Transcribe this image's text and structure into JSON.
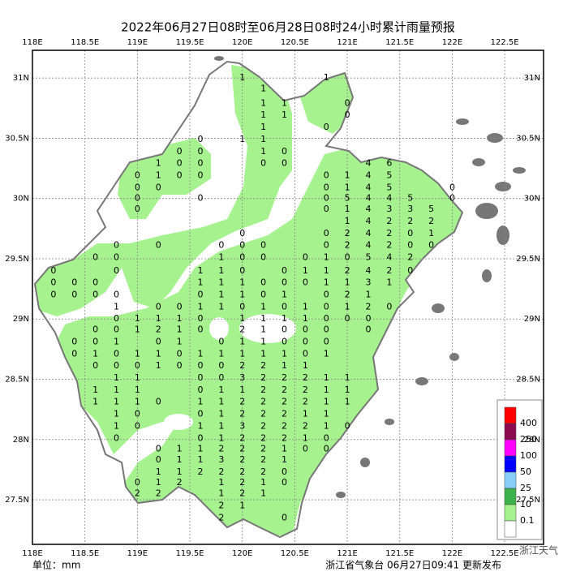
{
  "title": "2022年06月27日08时至06月28日08时24小时累计雨量预报",
  "xlim": [
    118,
    122.87
  ],
  "ylim": [
    27.13,
    31.23
  ],
  "xticks": [
    {
      "value": 118,
      "label": "118E"
    },
    {
      "value": 118.5,
      "label": "118.5E"
    },
    {
      "value": 119,
      "label": "119E"
    },
    {
      "value": 119.5,
      "label": "119.5E"
    },
    {
      "value": 120,
      "label": "120E"
    },
    {
      "value": 120.5,
      "label": "120.5E"
    },
    {
      "value": 121,
      "label": "121E"
    },
    {
      "value": 121.5,
      "label": "121.5E"
    },
    {
      "value": 122,
      "label": "122E"
    },
    {
      "value": 122.5,
      "label": "122.5E"
    }
  ],
  "yticks": [
    {
      "value": 31,
      "label": "31N"
    },
    {
      "value": 30.5,
      "label": "30.5N"
    },
    {
      "value": 30,
      "label": "30N"
    },
    {
      "value": 29.5,
      "label": "29.5N"
    },
    {
      "value": 29,
      "label": "29N"
    },
    {
      "value": 28.5,
      "label": "28.5N"
    },
    {
      "value": 28,
      "label": "28N"
    },
    {
      "value": 27.5,
      "label": "27.5N"
    }
  ],
  "stations": [
    [
      120.0,
      31.0,
      1
    ],
    [
      120.8,
      31.0,
      1
    ],
    [
      120.2,
      30.91,
      1
    ],
    [
      120.2,
      30.79,
      1
    ],
    [
      120.4,
      30.79,
      1
    ],
    [
      121.0,
      30.79,
      0
    ],
    [
      120.2,
      30.69,
      1
    ],
    [
      120.4,
      30.69,
      1
    ],
    [
      121.0,
      30.69,
      0
    ],
    [
      120.2,
      30.59,
      1
    ],
    [
      120.8,
      30.59,
      0
    ],
    [
      119.6,
      30.49,
      0
    ],
    [
      120.0,
      30.49,
      1
    ],
    [
      120.2,
      30.49,
      1
    ],
    [
      119.4,
      30.39,
      0
    ],
    [
      119.6,
      30.39,
      0
    ],
    [
      120.2,
      30.39,
      1
    ],
    [
      120.4,
      30.39,
      0
    ],
    [
      119.2,
      30.29,
      1
    ],
    [
      119.4,
      30.29,
      0
    ],
    [
      119.6,
      30.29,
      0
    ],
    [
      120.2,
      30.29,
      0
    ],
    [
      120.4,
      30.29,
      0
    ],
    [
      121.2,
      30.29,
      4
    ],
    [
      121.4,
      30.29,
      6
    ],
    [
      119.0,
      30.19,
      0
    ],
    [
      119.2,
      30.19,
      1
    ],
    [
      119.4,
      30.19,
      0
    ],
    [
      119.6,
      30.19,
      0
    ],
    [
      120.8,
      30.19,
      0
    ],
    [
      121.0,
      30.19,
      1
    ],
    [
      121.2,
      30.19,
      4
    ],
    [
      121.4,
      30.19,
      5
    ],
    [
      119.0,
      30.09,
      0
    ],
    [
      119.2,
      30.09,
      0
    ],
    [
      120.8,
      30.09,
      0
    ],
    [
      121.0,
      30.09,
      1
    ],
    [
      121.2,
      30.09,
      4
    ],
    [
      121.4,
      30.09,
      5
    ],
    [
      122.0,
      30.09,
      0
    ],
    [
      119.0,
      30.0,
      0
    ],
    [
      119.6,
      30.0,
      0
    ],
    [
      120.8,
      30.0,
      0
    ],
    [
      121.0,
      30.0,
      5
    ],
    [
      121.2,
      30.0,
      4
    ],
    [
      121.4,
      30.0,
      4
    ],
    [
      121.6,
      30.0,
      5
    ],
    [
      122.0,
      30.0,
      0
    ],
    [
      119.0,
      29.91,
      0
    ],
    [
      120.8,
      29.91,
      0
    ],
    [
      121.0,
      29.91,
      1
    ],
    [
      121.2,
      29.91,
      4
    ],
    [
      121.4,
      29.91,
      3
    ],
    [
      121.6,
      29.91,
      3
    ],
    [
      121.8,
      29.91,
      5
    ],
    [
      121.0,
      29.81,
      1
    ],
    [
      121.2,
      29.81,
      4
    ],
    [
      121.4,
      29.81,
      2
    ],
    [
      121.6,
      29.81,
      2
    ],
    [
      121.8,
      29.81,
      2
    ],
    [
      120.0,
      29.71,
      0
    ],
    [
      120.8,
      29.71,
      0
    ],
    [
      121.0,
      29.71,
      2
    ],
    [
      121.2,
      29.71,
      4
    ],
    [
      121.4,
      29.71,
      2
    ],
    [
      121.6,
      29.71,
      0
    ],
    [
      121.8,
      29.71,
      1
    ],
    [
      118.8,
      29.61,
      0
    ],
    [
      119.2,
      29.61,
      0
    ],
    [
      119.8,
      29.61,
      0
    ],
    [
      120.0,
      29.61,
      0
    ],
    [
      120.2,
      29.61,
      0
    ],
    [
      120.8,
      29.61,
      0
    ],
    [
      121.0,
      29.61,
      2
    ],
    [
      121.2,
      29.61,
      4
    ],
    [
      121.4,
      29.61,
      2
    ],
    [
      121.6,
      29.61,
      0
    ],
    [
      121.8,
      29.61,
      0
    ],
    [
      118.6,
      29.51,
      0
    ],
    [
      118.8,
      29.51,
      0
    ],
    [
      119.8,
      29.51,
      1
    ],
    [
      120.0,
      29.51,
      0
    ],
    [
      120.2,
      29.51,
      0
    ],
    [
      120.6,
      29.51,
      0
    ],
    [
      120.8,
      29.51,
      1
    ],
    [
      121.0,
      29.51,
      0
    ],
    [
      121.2,
      29.51,
      5
    ],
    [
      121.4,
      29.51,
      4
    ],
    [
      121.6,
      29.51,
      2
    ],
    [
      118.2,
      29.4,
      0
    ],
    [
      118.8,
      29.4,
      0
    ],
    [
      119.6,
      29.4,
      1
    ],
    [
      119.8,
      29.4,
      1
    ],
    [
      120.0,
      29.4,
      0
    ],
    [
      120.4,
      29.4,
      0
    ],
    [
      120.6,
      29.4,
      1
    ],
    [
      120.8,
      29.4,
      1
    ],
    [
      121.0,
      29.4,
      2
    ],
    [
      121.2,
      29.4,
      4
    ],
    [
      121.4,
      29.4,
      2
    ],
    [
      121.6,
      29.4,
      0
    ],
    [
      118.2,
      29.3,
      0
    ],
    [
      118.4,
      29.3,
      0
    ],
    [
      118.6,
      29.3,
      0
    ],
    [
      119.6,
      29.3,
      1
    ],
    [
      119.8,
      29.3,
      1
    ],
    [
      120.0,
      29.3,
      1
    ],
    [
      120.2,
      29.3,
      0
    ],
    [
      120.4,
      29.3,
      0
    ],
    [
      120.6,
      29.3,
      0
    ],
    [
      120.8,
      29.3,
      1
    ],
    [
      121.0,
      29.3,
      1
    ],
    [
      121.2,
      29.3,
      3
    ],
    [
      121.4,
      29.3,
      1
    ],
    [
      118.2,
      29.2,
      0
    ],
    [
      118.4,
      29.2,
      0
    ],
    [
      118.6,
      29.2,
      0
    ],
    [
      118.8,
      29.2,
      0
    ],
    [
      119.6,
      29.2,
      0
    ],
    [
      119.8,
      29.2,
      1
    ],
    [
      120.0,
      29.2,
      1
    ],
    [
      120.2,
      29.2,
      0
    ],
    [
      120.4,
      29.2,
      1
    ],
    [
      120.8,
      29.2,
      0
    ],
    [
      121.0,
      29.2,
      2
    ],
    [
      121.2,
      29.2,
      1
    ],
    [
      118.8,
      29.1,
      1
    ],
    [
      119.2,
      29.1,
      0
    ],
    [
      119.4,
      29.1,
      0
    ],
    [
      119.6,
      29.1,
      1
    ],
    [
      119.8,
      29.1,
      1
    ],
    [
      120.0,
      29.1,
      0
    ],
    [
      120.2,
      29.1,
      1
    ],
    [
      120.4,
      29.1,
      0
    ],
    [
      120.6,
      29.1,
      1
    ],
    [
      120.8,
      29.1,
      0
    ],
    [
      121.0,
      29.1,
      1
    ],
    [
      121.2,
      29.1,
      2
    ],
    [
      121.4,
      29.1,
      0
    ],
    [
      118.8,
      29.0,
      0
    ],
    [
      119.0,
      29.0,
      1
    ],
    [
      119.2,
      29.0,
      1
    ],
    [
      119.4,
      29.0,
      1
    ],
    [
      119.6,
      29.0,
      0
    ],
    [
      120.0,
      29.0,
      1
    ],
    [
      120.2,
      29.0,
      1
    ],
    [
      120.4,
      29.0,
      1
    ],
    [
      120.6,
      29.0,
      1
    ],
    [
      120.8,
      29.0,
      0
    ],
    [
      121.0,
      29.0,
      0
    ],
    [
      121.2,
      29.0,
      0
    ],
    [
      118.6,
      28.91,
      0
    ],
    [
      118.8,
      28.91,
      0
    ],
    [
      119.0,
      28.91,
      1
    ],
    [
      119.2,
      28.91,
      2
    ],
    [
      119.4,
      28.91,
      1
    ],
    [
      119.6,
      28.91,
      0
    ],
    [
      120.0,
      28.91,
      2
    ],
    [
      120.2,
      28.91,
      1
    ],
    [
      120.4,
      28.91,
      0
    ],
    [
      120.6,
      28.91,
      0
    ],
    [
      120.8,
      28.91,
      0
    ],
    [
      121.2,
      28.91,
      0
    ],
    [
      118.4,
      28.81,
      0
    ],
    [
      118.6,
      28.81,
      0
    ],
    [
      118.8,
      28.81,
      1
    ],
    [
      119.2,
      28.81,
      0
    ],
    [
      119.4,
      28.81,
      1
    ],
    [
      119.8,
      28.81,
      0
    ],
    [
      120.0,
      28.81,
      1
    ],
    [
      120.2,
      28.81,
      1
    ],
    [
      120.4,
      28.81,
      0
    ],
    [
      120.6,
      28.81,
      0
    ],
    [
      120.8,
      28.81,
      0
    ],
    [
      118.4,
      28.71,
      0
    ],
    [
      118.6,
      28.71,
      1
    ],
    [
      118.8,
      28.71,
      0
    ],
    [
      119.0,
      28.71,
      1
    ],
    [
      119.2,
      28.71,
      1
    ],
    [
      119.4,
      28.71,
      0
    ],
    [
      119.6,
      28.71,
      1
    ],
    [
      119.8,
      28.71,
      1
    ],
    [
      120.0,
      28.71,
      1
    ],
    [
      120.2,
      28.71,
      1
    ],
    [
      120.4,
      28.71,
      1
    ],
    [
      120.6,
      28.71,
      0
    ],
    [
      120.8,
      28.71,
      1
    ],
    [
      118.6,
      28.61,
      0
    ],
    [
      118.8,
      28.61,
      0
    ],
    [
      119.0,
      28.61,
      0
    ],
    [
      119.2,
      28.61,
      1
    ],
    [
      119.4,
      28.61,
      0
    ],
    [
      119.6,
      28.61,
      0
    ],
    [
      119.8,
      28.61,
      0
    ],
    [
      120.0,
      28.61,
      2
    ],
    [
      120.2,
      28.61,
      2
    ],
    [
      120.4,
      28.61,
      1
    ],
    [
      120.6,
      28.61,
      1
    ],
    [
      118.8,
      28.51,
      1
    ],
    [
      119.0,
      28.51,
      1
    ],
    [
      119.6,
      28.51,
      0
    ],
    [
      119.8,
      28.51,
      0
    ],
    [
      120.0,
      28.51,
      3
    ],
    [
      120.2,
      28.51,
      2
    ],
    [
      120.4,
      28.51,
      2
    ],
    [
      120.6,
      28.51,
      2
    ],
    [
      120.8,
      28.51,
      1
    ],
    [
      121.0,
      28.51,
      1
    ],
    [
      118.6,
      28.41,
      1
    ],
    [
      118.8,
      28.41,
      1
    ],
    [
      119.0,
      28.41,
      1
    ],
    [
      119.6,
      28.41,
      0
    ],
    [
      119.8,
      28.41,
      1
    ],
    [
      120.0,
      28.41,
      1
    ],
    [
      120.2,
      28.41,
      2
    ],
    [
      120.4,
      28.41,
      2
    ],
    [
      120.6,
      28.41,
      2
    ],
    [
      120.8,
      28.41,
      1
    ],
    [
      121.0,
      28.41,
      1
    ],
    [
      118.6,
      28.31,
      1
    ],
    [
      118.8,
      28.31,
      1
    ],
    [
      119.0,
      28.31,
      1
    ],
    [
      119.2,
      28.31,
      0
    ],
    [
      119.6,
      28.31,
      1
    ],
    [
      119.8,
      28.31,
      1
    ],
    [
      120.0,
      28.31,
      2
    ],
    [
      120.2,
      28.31,
      2
    ],
    [
      120.4,
      28.31,
      2
    ],
    [
      120.6,
      28.31,
      2
    ],
    [
      120.8,
      28.31,
      1
    ],
    [
      121.0,
      28.31,
      1
    ],
    [
      118.8,
      28.21,
      1
    ],
    [
      119.0,
      28.21,
      0
    ],
    [
      119.6,
      28.21,
      0
    ],
    [
      119.8,
      28.21,
      1
    ],
    [
      120.0,
      28.21,
      2
    ],
    [
      120.2,
      28.21,
      2
    ],
    [
      120.4,
      28.21,
      2
    ],
    [
      120.6,
      28.21,
      1
    ],
    [
      120.8,
      28.21,
      1
    ],
    [
      118.8,
      28.11,
      1
    ],
    [
      119.0,
      28.11,
      0
    ],
    [
      119.6,
      28.11,
      1
    ],
    [
      119.8,
      28.11,
      1
    ],
    [
      120.0,
      28.11,
      3
    ],
    [
      120.2,
      28.11,
      2
    ],
    [
      120.4,
      28.11,
      2
    ],
    [
      120.6,
      28.11,
      2
    ],
    [
      120.8,
      28.11,
      1
    ],
    [
      121.0,
      28.11,
      0
    ],
    [
      118.8,
      28.01,
      0
    ],
    [
      119.6,
      28.01,
      0
    ],
    [
      119.8,
      28.01,
      1
    ],
    [
      120.0,
      28.01,
      2
    ],
    [
      120.2,
      28.01,
      2
    ],
    [
      120.4,
      28.01,
      2
    ],
    [
      120.6,
      28.01,
      1
    ],
    [
      120.8,
      28.01,
      0
    ],
    [
      119.2,
      27.92,
      0
    ],
    [
      119.4,
      27.92,
      1
    ],
    [
      119.6,
      27.92,
      1
    ],
    [
      119.8,
      27.92,
      2
    ],
    [
      120.0,
      27.92,
      2
    ],
    [
      120.2,
      27.92,
      2
    ],
    [
      120.4,
      27.92,
      1
    ],
    [
      120.6,
      27.92,
      0
    ],
    [
      120.8,
      27.92,
      0
    ],
    [
      119.2,
      27.83,
      0
    ],
    [
      119.4,
      27.83,
      1
    ],
    [
      119.6,
      27.83,
      1
    ],
    [
      119.8,
      27.83,
      3
    ],
    [
      120.0,
      27.83,
      2
    ],
    [
      120.2,
      27.83,
      2
    ],
    [
      120.4,
      27.83,
      1
    ],
    [
      119.2,
      27.73,
      1
    ],
    [
      119.4,
      27.73,
      1
    ],
    [
      119.6,
      27.73,
      2
    ],
    [
      119.8,
      27.73,
      2
    ],
    [
      120.0,
      27.73,
      2
    ],
    [
      120.2,
      27.73,
      2
    ],
    [
      120.4,
      27.73,
      0
    ],
    [
      119.0,
      27.64,
      0
    ],
    [
      119.2,
      27.64,
      1
    ],
    [
      119.4,
      27.64,
      2
    ],
    [
      119.8,
      27.64,
      1
    ],
    [
      120.0,
      27.64,
      2
    ],
    [
      120.2,
      27.64,
      1
    ],
    [
      120.4,
      27.64,
      0
    ],
    [
      119.0,
      27.55,
      2
    ],
    [
      119.2,
      27.55,
      2
    ],
    [
      119.8,
      27.55,
      1
    ],
    [
      120.0,
      27.55,
      2
    ],
    [
      120.2,
      27.55,
      1
    ],
    [
      119.8,
      27.45,
      2
    ],
    [
      120.0,
      27.45,
      1
    ],
    [
      119.8,
      27.35,
      2
    ],
    [
      120.4,
      27.35,
      0
    ]
  ],
  "legend": {
    "colors": [
      "#ff0000",
      "#8b0a50",
      "#ff00ff",
      "#0000ff",
      "#87cefa",
      "#3cb34a",
      "#a6f28f",
      "#ffffff"
    ],
    "labels": [
      400,
      250,
      100,
      50,
      25,
      10,
      0.1
    ]
  },
  "unit_label": "单位：mm",
  "issuer": "浙江省气象台 06月27日09:41 更新发布",
  "watermark": "浙江天气"
}
